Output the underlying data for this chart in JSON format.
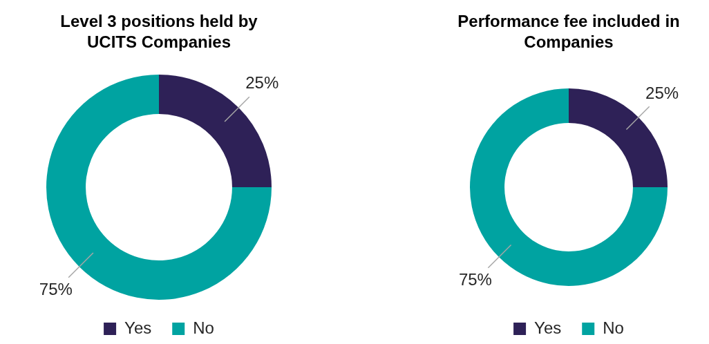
{
  "chart_data": [
    {
      "type": "donut",
      "title": "Level 3 positions held by UCITS Companies",
      "categories": [
        "Yes",
        "No"
      ],
      "values": [
        25,
        75
      ],
      "value_labels": [
        "25%",
        "75%"
      ],
      "colors": [
        "#2e2157",
        "#00a3a1"
      ],
      "legend": "bottom"
    },
    {
      "type": "donut",
      "title": "Performance fee included in Companies",
      "categories": [
        "Yes",
        "No"
      ],
      "values": [
        25,
        75
      ],
      "value_labels": [
        "25%",
        "75%"
      ],
      "colors": [
        "#2e2157",
        "#00a3a1"
      ],
      "legend": "bottom"
    }
  ]
}
